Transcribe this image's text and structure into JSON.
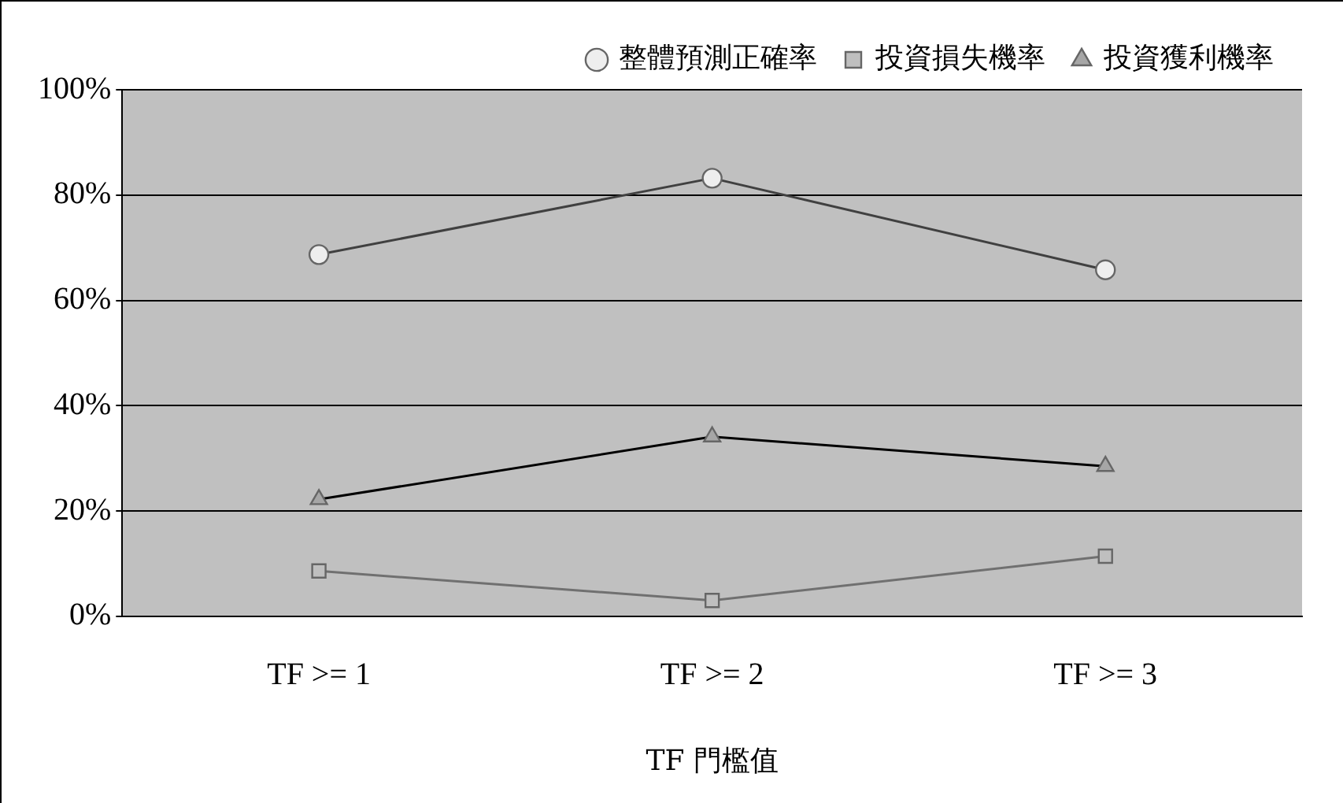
{
  "chart_data": {
    "type": "line",
    "xlabel": "TF 門檻值",
    "categories": [
      "TF >= 1",
      "TF >= 2",
      "TF >= 3"
    ],
    "series": [
      {
        "name": "整體預測正確率",
        "color": "#404040",
        "marker": "circle",
        "values": [
          68.7,
          83.2,
          65.8
        ]
      },
      {
        "name": "投資損失機率",
        "color": "#707070",
        "marker": "square",
        "values": [
          8.6,
          3.0,
          11.4
        ]
      },
      {
        "name": "投資獲利機率",
        "color": "#000000",
        "marker": "triangle",
        "values": [
          22.2,
          34.1,
          28.5
        ]
      }
    ],
    "ylim": [
      0,
      100
    ],
    "yticks": [
      {
        "value": 0,
        "label": "0%"
      },
      {
        "value": 20,
        "label": "20%"
      },
      {
        "value": 40,
        "label": "40%"
      },
      {
        "value": 60,
        "label": "60%"
      },
      {
        "value": 80,
        "label": "80%"
      },
      {
        "value": 100,
        "label": "100%"
      }
    ],
    "grid": "y",
    "legend": "top",
    "line_style": "solid"
  }
}
